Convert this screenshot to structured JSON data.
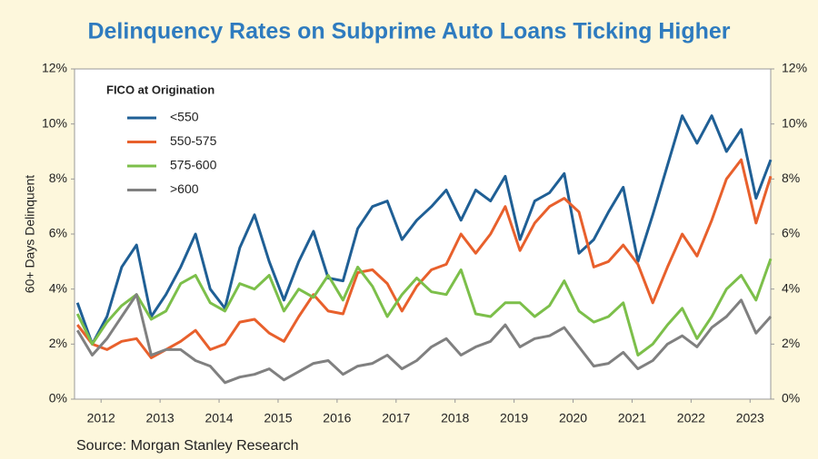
{
  "chart_data": {
    "type": "line",
    "title": "Delinquency Rates on Subprime Auto Loans Ticking Higher",
    "y_label": "60+ Days Delinquent",
    "source": "Source: Morgan Stanley Research",
    "legend_title": "FICO at Origination",
    "x": [
      2011.6,
      2011.85,
      2012.1,
      2012.35,
      2012.6,
      2012.85,
      2013.1,
      2013.35,
      2013.6,
      2013.85,
      2014.1,
      2014.35,
      2014.6,
      2014.85,
      2015.1,
      2015.35,
      2015.6,
      2015.85,
      2016.1,
      2016.35,
      2016.6,
      2016.85,
      2017.1,
      2017.35,
      2017.6,
      2017.85,
      2018.1,
      2018.35,
      2018.6,
      2018.85,
      2019.1,
      2019.35,
      2019.6,
      2019.85,
      2020.1,
      2020.35,
      2020.6,
      2020.85,
      2021.1,
      2021.35,
      2021.6,
      2021.85,
      2022.1,
      2022.35,
      2022.6,
      2022.85,
      2023.1,
      2023.35
    ],
    "xlim": [
      2011.55,
      2023.35
    ],
    "xticks": [
      2012,
      2013,
      2014,
      2015,
      2016,
      2017,
      2018,
      2019,
      2020,
      2021,
      2022,
      2023
    ],
    "ylim": [
      0,
      12
    ],
    "yticks": [
      {
        "value": 0,
        "label": "0%"
      },
      {
        "value": 2,
        "label": "2%"
      },
      {
        "value": 4,
        "label": "4%"
      },
      {
        "value": 6,
        "label": "6%"
      },
      {
        "value": 8,
        "label": "8%"
      },
      {
        "value": 10,
        "label": "10%"
      },
      {
        "value": 12,
        "label": "12%"
      }
    ],
    "series": [
      {
        "name": "<550",
        "color": "#1f5f95",
        "values": [
          3.5,
          2.0,
          3.0,
          4.8,
          5.6,
          3.0,
          3.8,
          4.8,
          6.0,
          4.0,
          3.3,
          5.5,
          6.7,
          5.0,
          3.6,
          5.0,
          6.1,
          4.4,
          4.3,
          6.2,
          7.0,
          7.2,
          5.8,
          6.5,
          7.0,
          7.6,
          6.5,
          7.6,
          7.2,
          8.1,
          5.8,
          7.2,
          7.5,
          8.2,
          5.3,
          5.8,
          6.8,
          7.7,
          5.0,
          6.7,
          8.5,
          10.3,
          9.3,
          10.3,
          9.0,
          9.8,
          7.3,
          8.7
        ]
      },
      {
        "name": "550-575",
        "color": "#e8602c",
        "values": [
          2.7,
          2.0,
          1.8,
          2.1,
          2.2,
          1.5,
          1.8,
          2.1,
          2.5,
          1.8,
          2.0,
          2.8,
          2.9,
          2.4,
          2.1,
          3.0,
          3.8,
          3.2,
          3.1,
          4.6,
          4.7,
          4.2,
          3.2,
          4.1,
          4.7,
          4.9,
          6.0,
          5.3,
          6.0,
          7.0,
          5.4,
          6.4,
          7.0,
          7.3,
          6.8,
          4.8,
          5.0,
          5.6,
          4.9,
          3.5,
          4.8,
          6.0,
          5.2,
          6.5,
          8.0,
          8.7,
          6.4,
          8.1
        ]
      },
      {
        "name": "575-600",
        "color": "#7cbf4a",
        "values": [
          3.1,
          2.0,
          2.8,
          3.4,
          3.8,
          2.9,
          3.2,
          4.2,
          4.5,
          3.5,
          3.2,
          4.2,
          4.0,
          4.5,
          3.2,
          4.0,
          3.7,
          4.5,
          3.6,
          4.8,
          4.1,
          3.0,
          3.8,
          4.4,
          3.9,
          3.8,
          4.7,
          3.1,
          3.0,
          3.5,
          3.5,
          3.0,
          3.4,
          4.3,
          3.2,
          2.8,
          3.0,
          3.5,
          1.6,
          2.0,
          2.7,
          3.3,
          2.2,
          3.0,
          4.0,
          4.5,
          3.6,
          5.1
        ]
      },
      {
        "name": ">600",
        "color": "#808080",
        "values": [
          2.5,
          1.6,
          2.2,
          3.0,
          3.8,
          1.6,
          1.8,
          1.8,
          1.4,
          1.2,
          0.6,
          0.8,
          0.9,
          1.1,
          0.7,
          1.0,
          1.3,
          1.4,
          0.9,
          1.2,
          1.3,
          1.6,
          1.1,
          1.4,
          1.9,
          2.2,
          1.6,
          1.9,
          2.1,
          2.7,
          1.9,
          2.2,
          2.3,
          2.6,
          1.9,
          1.2,
          1.3,
          1.7,
          1.1,
          1.4,
          2.0,
          2.3,
          1.9,
          2.6,
          3.0,
          3.6,
          2.4,
          3.0
        ]
      }
    ],
    "right_axis_mirror": true
  }
}
